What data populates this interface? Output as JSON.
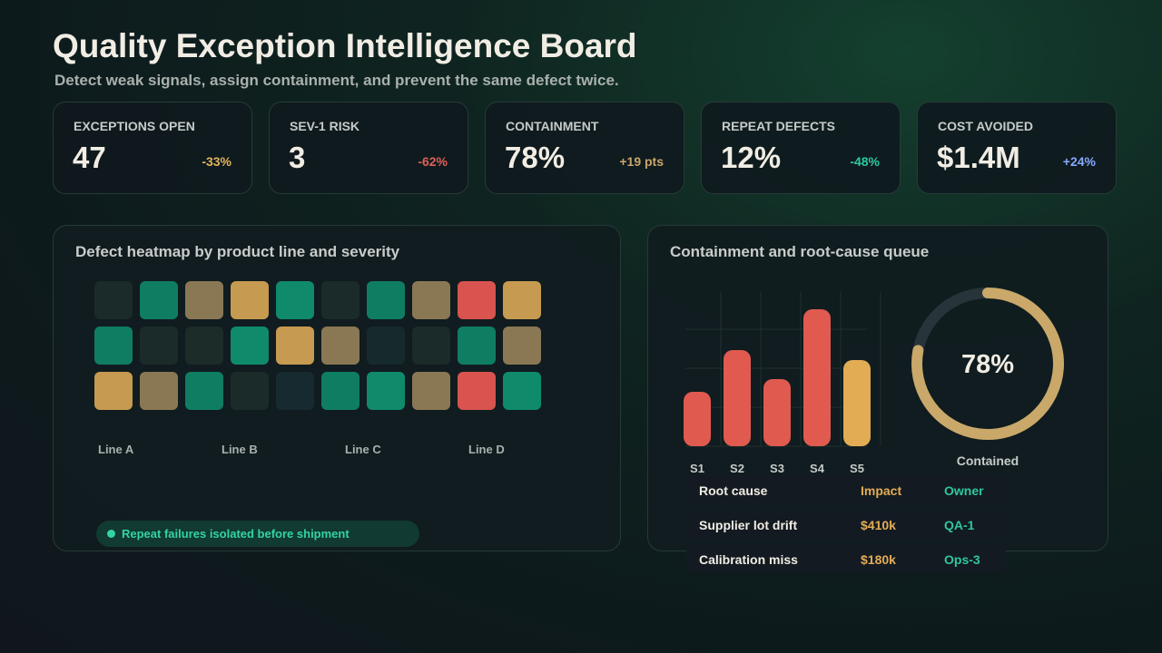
{
  "header": {
    "title": "Quality Exception Intelligence Board",
    "subtitle": "Detect weak signals, assign containment, and prevent the same defect twice."
  },
  "kpis": [
    {
      "label": "EXCEPTIONS OPEN",
      "value": "47",
      "delta": "-33%",
      "delta_color": "#e2b45a"
    },
    {
      "label": "SEV-1 RISK",
      "value": "3",
      "delta": "-62%",
      "delta_color": "#e0605a"
    },
    {
      "label": "CONTAINMENT",
      "value": "78%",
      "delta": "+19 pts",
      "delta_color": "#caa56a"
    },
    {
      "label": "REPEAT DEFECTS",
      "value": "12%",
      "delta": "-48%",
      "delta_color": "#2fc79e"
    },
    {
      "label": "COST AVOIDED",
      "value": "$1.4M",
      "delta": "+24%",
      "delta_color": "#86a8ff"
    }
  ],
  "heatmap": {
    "title": "Defect heatmap by product line and severity",
    "cells": [
      [
        "#1b2b29",
        "#0f7d62",
        "#8a7855",
        "#c69a50",
        "#0f8a6b",
        "#1b2b29",
        "#0f7d62",
        "#8a7855",
        "#d9534f",
        "#c69a50"
      ],
      [
        "#0f7d62",
        "#1b2b29",
        "#1c2c28",
        "#0f8a6b",
        "#c69a50",
        "#8a7855",
        "#162a2c",
        "#1b2b29",
        "#0f7d62",
        "#8a7855"
      ],
      [
        "#c69a50",
        "#8a7855",
        "#0f7d62",
        "#1b2b29",
        "#172a2f",
        "#0f7d62",
        "#0f8a6b",
        "#8a7855",
        "#d9534f",
        "#0f8a6b"
      ]
    ],
    "columns": [
      "Line A",
      "Line B",
      "Line C",
      "Line D"
    ],
    "note": "Repeat failures isolated before shipment"
  },
  "queue": {
    "title": "Containment and root-cause queue",
    "chart_data": {
      "type": "bar",
      "categories": [
        "S1",
        "S2",
        "S3",
        "S4",
        "S5"
      ],
      "values": [
        60,
        106,
        74,
        151,
        95
      ],
      "colors": [
        "#e05a50",
        "#e05a50",
        "#e05a50",
        "#e05a50",
        "#e2ac55"
      ],
      "ylim": [
        0,
        170
      ],
      "grid": true
    },
    "donut": {
      "value": 78,
      "value_label": "78%",
      "label": "Contained",
      "color": "#c9a86a",
      "max": 100
    },
    "table": {
      "header": [
        "Root cause",
        "Impact",
        "Owner"
      ],
      "rows": [
        [
          "Supplier lot drift",
          "$410k",
          "QA-1"
        ],
        [
          "Calibration miss",
          "$180k",
          "Ops-3"
        ]
      ]
    }
  }
}
